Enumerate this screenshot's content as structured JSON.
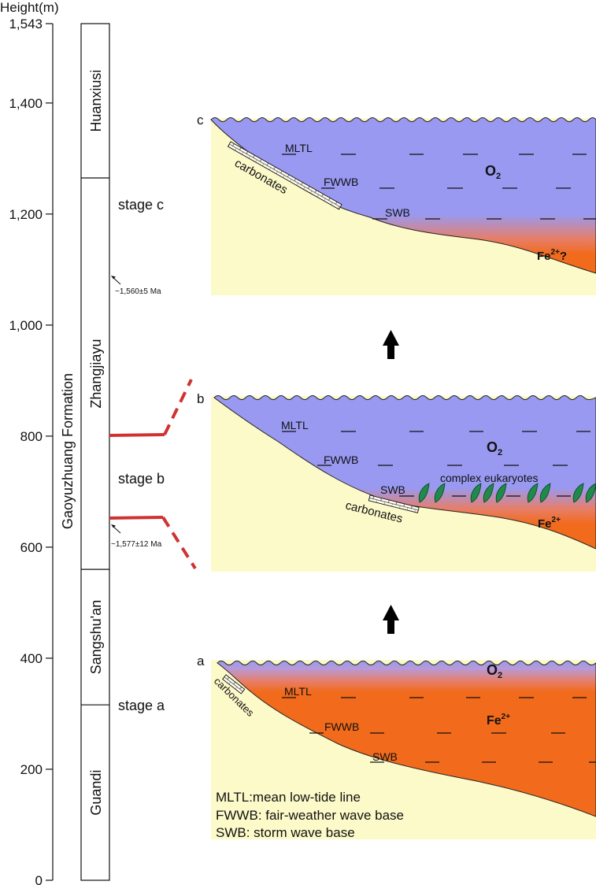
{
  "axis": {
    "title": "Height(m)",
    "ticks": [
      {
        "label": "1,543",
        "value": 1543
      },
      {
        "label": "1,400",
        "value": 1400
      },
      {
        "label": "1,200",
        "value": 1200
      },
      {
        "label": "1,000",
        "value": 1000
      },
      {
        "label": "800",
        "value": 800
      },
      {
        "label": "600",
        "value": 600
      },
      {
        "label": "400",
        "value": 400
      },
      {
        "label": "200",
        "value": 200
      },
      {
        "label": "0",
        "value": 0
      }
    ]
  },
  "formation": {
    "name": "Gaoyuzhuang Formation",
    "members": [
      {
        "name": "Huanxiusi",
        "from_m": 1265,
        "to_m": 1543
      },
      {
        "name": "Zhangjiayu",
        "from_m": 560,
        "to_m": 1265
      },
      {
        "name": "Sangshu'an",
        "from_m": 316,
        "to_m": 560
      },
      {
        "name": "Guandi",
        "from_m": 0,
        "to_m": 316
      }
    ]
  },
  "ages": {
    "upper": "~1,560±5 Ma",
    "lower": "~1,577±12 Ma"
  },
  "stages": {
    "c": "stage c",
    "b": "stage b",
    "a": "stage a"
  },
  "panels": {
    "c": {
      "letter": "c",
      "mltl": "MLTL",
      "fwwb": "FWWB",
      "swb": "SWB",
      "o2": "O",
      "o2_sub": "2",
      "fe": "Fe",
      "fe_sup": "2+",
      "fe_suffix": "?",
      "carbonates": "carbonates"
    },
    "b": {
      "letter": "b",
      "mltl": "MLTL",
      "fwwb": "FWWB",
      "swb": "SWB",
      "o2": "O",
      "o2_sub": "2",
      "fe": "Fe",
      "fe_sup": "2+",
      "carbonates": "carbonates",
      "eukaryotes": "complex eukaryotes"
    },
    "a": {
      "letter": "a",
      "mltl": "MLTL",
      "fwwb": "FWWB",
      "swb": "SWB",
      "o2": "O",
      "o2_sub": "2",
      "fe": "Fe",
      "fe_sup": "2+",
      "carbonates": "carbonates"
    }
  },
  "legend": [
    "MLTL:mean low-tide line",
    "FWWB: fair-weather wave base",
    "SWB: storm wave base"
  ],
  "colors": {
    "oxic_water": "#9999f2",
    "ferruginous_water": "#f26a1b",
    "sediment": "#fdfac9",
    "red_marker": "#d03232",
    "eukaryote": "#1f8a4c"
  }
}
